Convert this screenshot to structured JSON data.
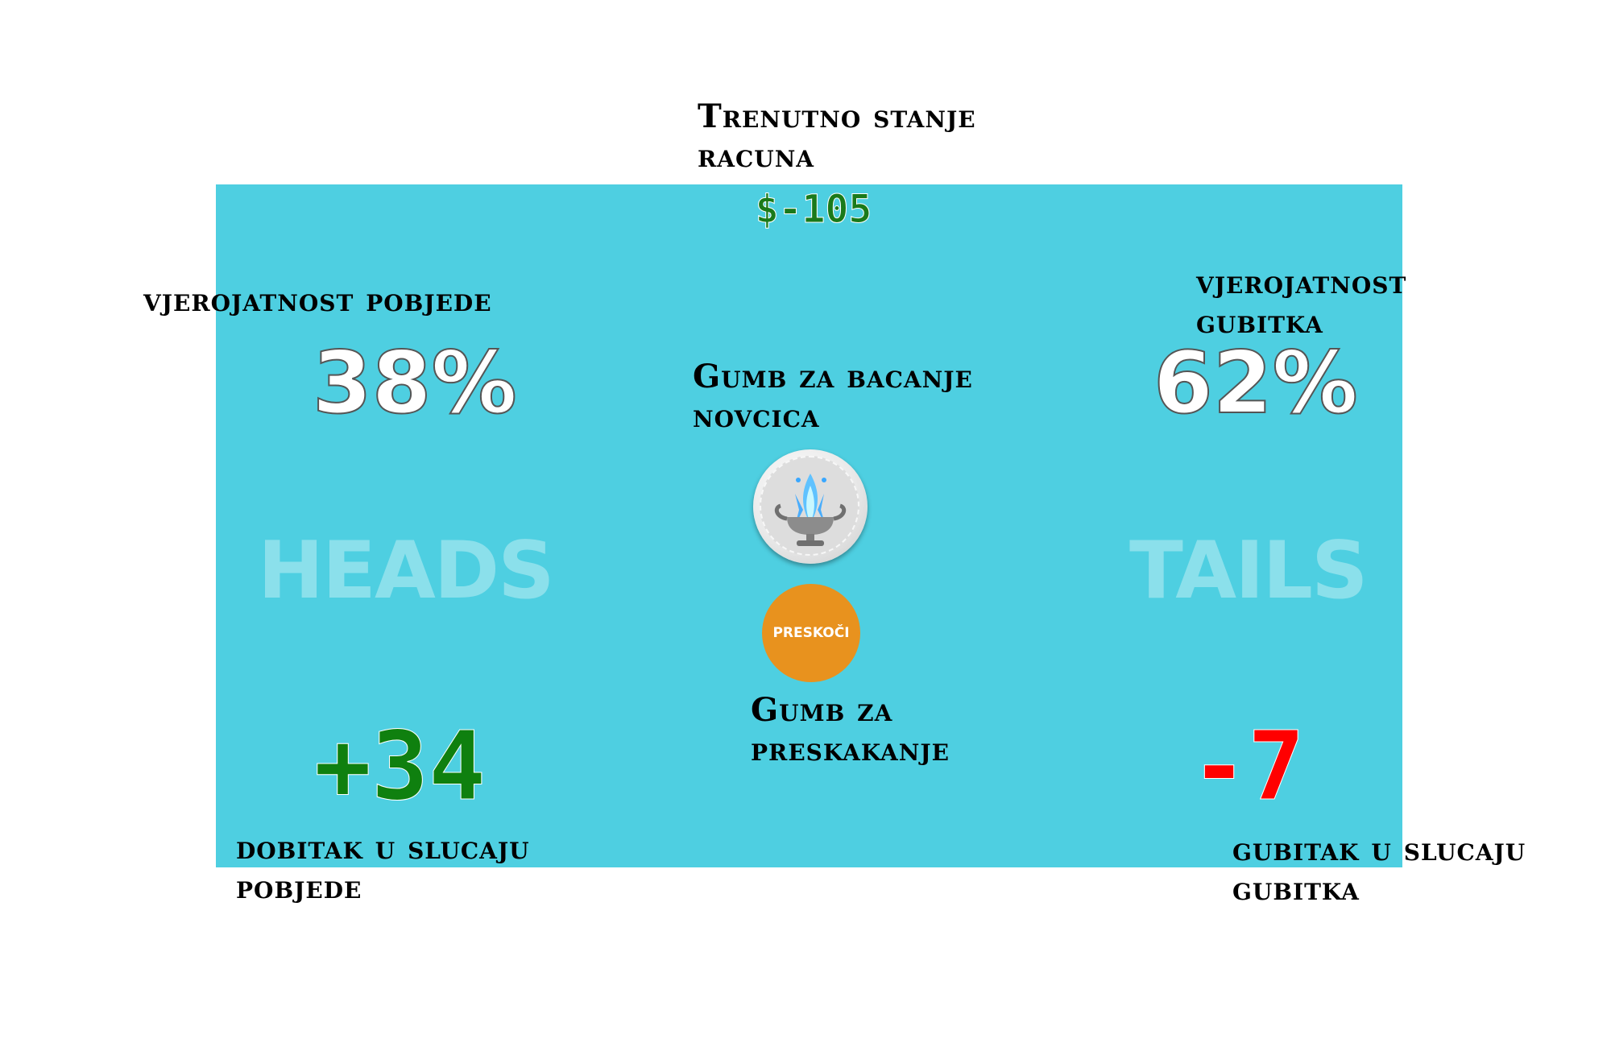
{
  "balance": {
    "annotation": "Trenutno stanje\nracuna",
    "value": "$-105"
  },
  "win": {
    "annotation": "vjerojatnost pobjede",
    "percent": "38%",
    "side_label": "HEADS",
    "gain_value": "+34",
    "gain_annotation": "dobitak u slucaju\npobjede"
  },
  "loss": {
    "annotation": "vjerojatnost\ngubitka",
    "percent": "62%",
    "side_label": "TAILS",
    "loss_value": "-7",
    "loss_annotation": "gubitak u slucaju\ngubitka"
  },
  "coin_button": {
    "annotation": "Gumb za bacanje\nnovcica",
    "icon": "coin-fire-urn-icon"
  },
  "skip_button": {
    "label": "PRESKOČI",
    "annotation": "Gumb za\npreskakanje"
  },
  "colors": {
    "panel": "#4ecfe1",
    "gain": "#0f800f",
    "loss": "#ff0000",
    "skip": "#e8921e",
    "balance": "#1a7a1a"
  }
}
